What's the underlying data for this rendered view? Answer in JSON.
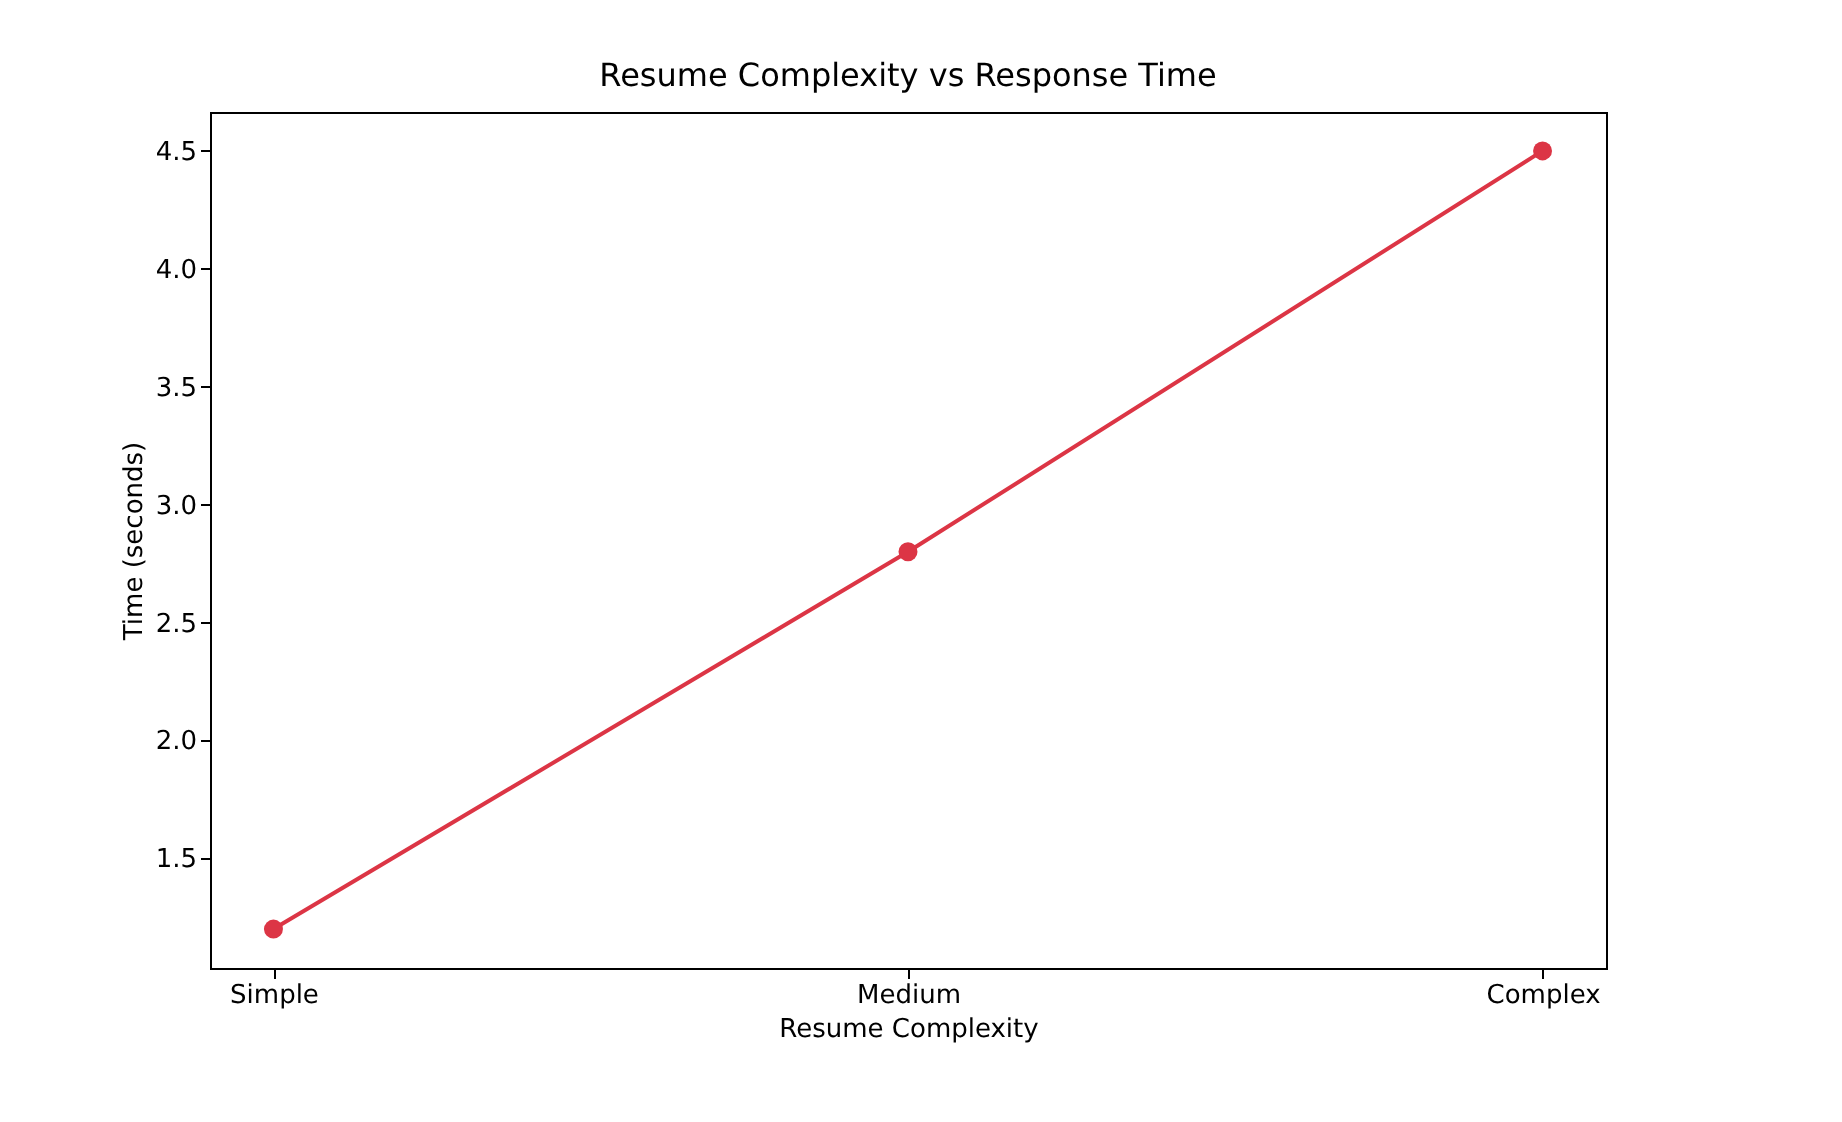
{
  "chart_data": {
    "type": "line",
    "title": "Resume Complexity vs Response Time",
    "xlabel": "Resume Complexity",
    "ylabel": "Time (seconds)",
    "categories": [
      "Simple",
      "Medium",
      "Complex"
    ],
    "series": [
      {
        "color": "#dc3545",
        "values": [
          1.2,
          2.8,
          4.5
        ]
      }
    ],
    "ylim": [
      1.035,
      4.665
    ],
    "yticks": [
      1.5,
      {
        "value": 2,
        "label": "2.0"
      },
      2.5,
      {
        "value": 3,
        "label": "3.0"
      },
      3.5,
      {
        "value": 4,
        "label": "4.0"
      },
      4.5
    ],
    "marker": "circle",
    "line_style": "solid",
    "grid": false
  }
}
